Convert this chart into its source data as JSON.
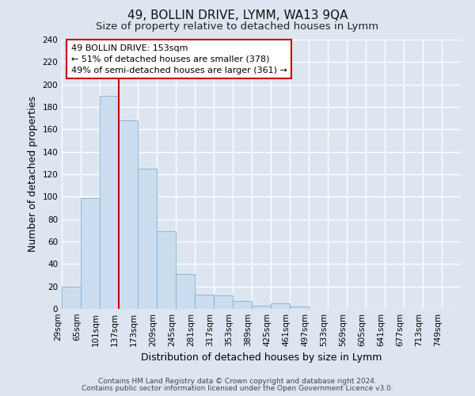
{
  "title": "49, BOLLIN DRIVE, LYMM, WA13 9QA",
  "subtitle": "Size of property relative to detached houses in Lymm",
  "xlabel": "Distribution of detached houses by size in Lymm",
  "ylabel": "Number of detached properties",
  "bar_labels": [
    "29sqm",
    "65sqm",
    "101sqm",
    "137sqm",
    "173sqm",
    "209sqm",
    "245sqm",
    "281sqm",
    "317sqm",
    "353sqm",
    "389sqm",
    "425sqm",
    "461sqm",
    "497sqm",
    "533sqm",
    "569sqm",
    "605sqm",
    "641sqm",
    "677sqm",
    "713sqm",
    "749sqm"
  ],
  "bar_heights": [
    20,
    99,
    190,
    168,
    125,
    69,
    31,
    13,
    12,
    7,
    3,
    5,
    2,
    0,
    0,
    0,
    0,
    0,
    0,
    0,
    0
  ],
  "bar_color": "#ccddf0",
  "bar_edge_color": "#7bafd4",
  "bar_width": 1.0,
  "ylim": [
    0,
    240
  ],
  "yticks": [
    0,
    20,
    40,
    60,
    80,
    100,
    120,
    140,
    160,
    180,
    200,
    220,
    240
  ],
  "vline_x": 3.0,
  "vline_color": "#cc0000",
  "annotation_text": "49 BOLLIN DRIVE: 153sqm\n← 51% of detached houses are smaller (378)\n49% of semi-detached houses are larger (361) →",
  "annotation_box_color": "#ffffff",
  "annotation_box_edge": "#cc0000",
  "footer_line1": "Contains HM Land Registry data © Crown copyright and database right 2024.",
  "footer_line2": "Contains public sector information licensed under the Open Government Licence v3.0.",
  "bg_color": "#dde6f0",
  "plot_bg_color": "#dde6f0",
  "grid_color": "#ffffff",
  "title_fontsize": 11,
  "subtitle_fontsize": 9.5,
  "axis_label_fontsize": 9,
  "tick_fontsize": 7.5,
  "footer_fontsize": 6.5
}
